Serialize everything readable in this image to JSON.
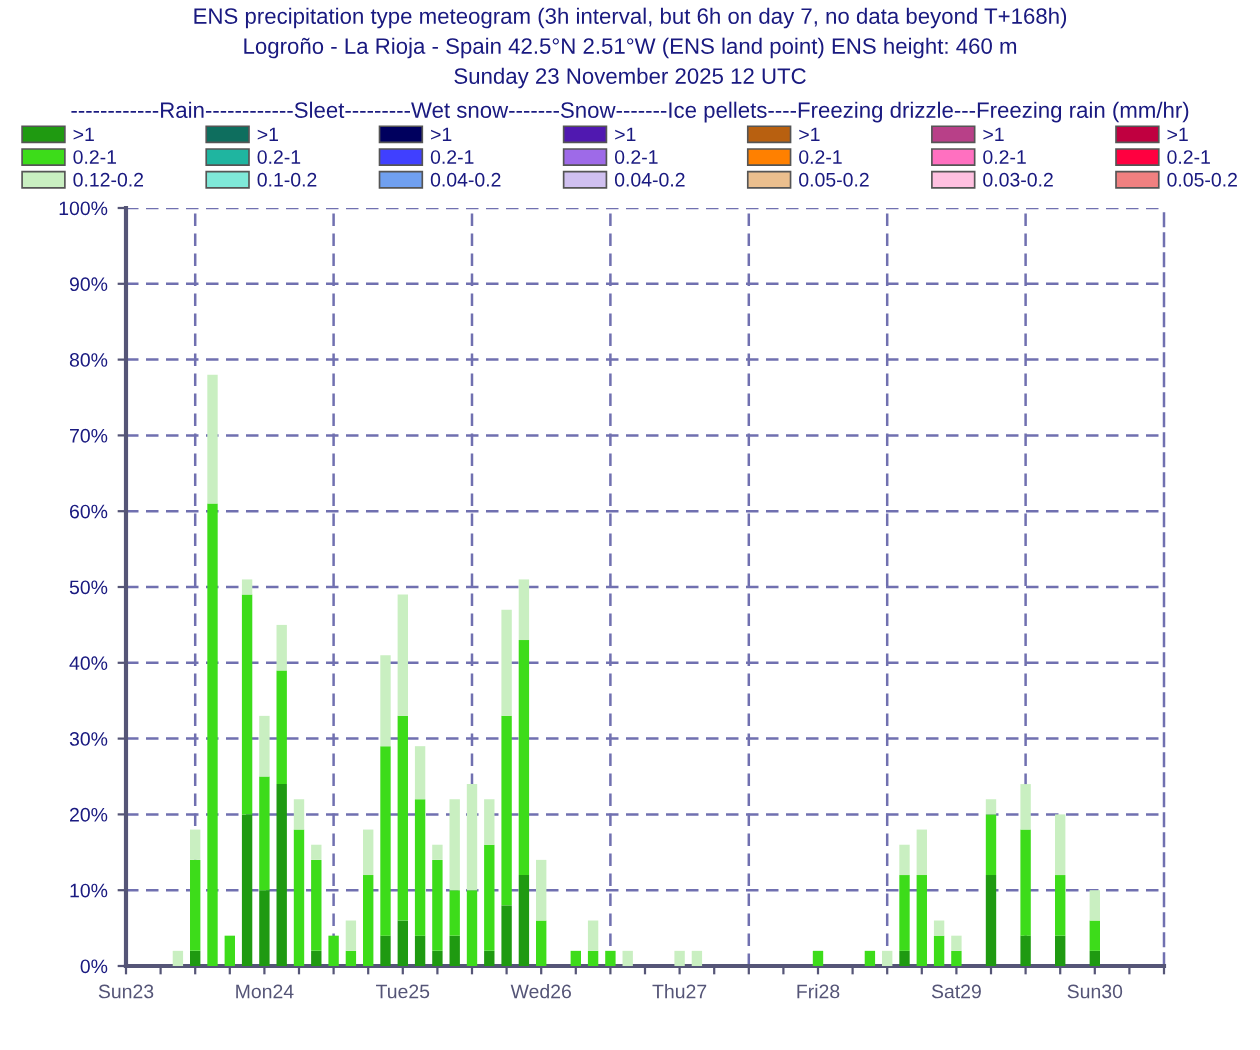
{
  "chart_data": {
    "type": "bar",
    "stacked": true,
    "title": "ENS precipitation type meteogram (3h interval, but 6h on day 7, no data beyond T+168h)",
    "subtitle": "Logroño - La Rioja - Spain 42.5°N 2.51°W (ENS land point) ENS height: 460 m\nSunday 23 November 2025 12 UTC",
    "legend_title": "------------Rain------------Sleet---------Wet snow-------Snow-------Ice pellets----Freezing drizzle---Freezing rain (mm/hr)",
    "legend": "top",
    "grid": "y",
    "x": [
      "2025-11-23T21:00",
      "2025-11-24T00:00",
      "2025-11-24T03:00",
      "2025-11-24T06:00",
      "2025-11-24T09:00",
      "2025-11-24T12:00",
      "2025-11-24T15:00",
      "2025-11-24T18:00",
      "2025-11-24T21:00",
      "2025-11-25T00:00",
      "2025-11-25T03:00",
      "2025-11-25T06:00",
      "2025-11-25T09:00",
      "2025-11-25T12:00",
      "2025-11-25T15:00",
      "2025-11-25T18:00",
      "2025-11-25T21:00",
      "2025-11-26T00:00",
      "2025-11-26T03:00",
      "2025-11-26T06:00",
      "2025-11-26T09:00",
      "2025-11-26T12:00",
      "2025-11-26T18:00",
      "2025-11-26T21:00",
      "2025-11-27T00:00",
      "2025-11-27T03:00",
      "2025-11-27T12:00",
      "2025-11-27T15:00",
      "2025-11-28T12:00",
      "2025-11-28T21:00",
      "2025-11-29T00:00",
      "2025-11-29T03:00",
      "2025-11-29T06:00",
      "2025-11-29T09:00",
      "2025-11-29T12:00",
      "2025-11-29T18:00",
      "2025-11-30T00:00",
      "2025-11-30T06:00",
      "2025-11-30T12:00"
    ],
    "xlim": [
      "2025-11-23T12:00",
      "2025-12-01T00:00"
    ],
    "xticks": [
      {
        "value": "2025-11-23T12:00",
        "label": "Sun23"
      },
      {
        "value": "2025-11-23T18:00",
        "label": null
      },
      {
        "value": "2025-11-24T00:00",
        "label": null
      },
      {
        "value": "2025-11-24T06:00",
        "label": null
      },
      {
        "value": "2025-11-24T12:00",
        "label": "Mon24"
      },
      {
        "value": "2025-11-24T18:00",
        "label": null
      },
      {
        "value": "2025-11-25T00:00",
        "label": null
      },
      {
        "value": "2025-11-25T06:00",
        "label": null
      },
      {
        "value": "2025-11-25T12:00",
        "label": "Tue25"
      },
      {
        "value": "2025-11-25T18:00",
        "label": null
      },
      {
        "value": "2025-11-26T00:00",
        "label": null
      },
      {
        "value": "2025-11-26T06:00",
        "label": null
      },
      {
        "value": "2025-11-26T12:00",
        "label": "Wed26"
      },
      {
        "value": "2025-11-26T18:00",
        "label": null
      },
      {
        "value": "2025-11-27T00:00",
        "label": null
      },
      {
        "value": "2025-11-27T06:00",
        "label": null
      },
      {
        "value": "2025-11-27T12:00",
        "label": "Thu27"
      },
      {
        "value": "2025-11-27T18:00",
        "label": null
      },
      {
        "value": "2025-11-28T00:00",
        "label": null
      },
      {
        "value": "2025-11-28T06:00",
        "label": null
      },
      {
        "value": "2025-11-28T12:00",
        "label": "Fri28"
      },
      {
        "value": "2025-11-28T18:00",
        "label": null
      },
      {
        "value": "2025-11-29T00:00",
        "label": null
      },
      {
        "value": "2025-11-29T06:00",
        "label": null
      },
      {
        "value": "2025-11-29T12:00",
        "label": "Sat29"
      },
      {
        "value": "2025-11-29T18:00",
        "label": null
      },
      {
        "value": "2025-11-30T00:00",
        "label": null
      },
      {
        "value": "2025-11-30T06:00",
        "label": null
      },
      {
        "value": "2025-11-30T12:00",
        "label": "Sun30"
      },
      {
        "value": "2025-11-30T18:00",
        "label": null
      },
      {
        "value": "2025-12-01T00:00",
        "label": null
      }
    ],
    "ylim": [
      0,
      100
    ],
    "yticks": [
      {
        "value": 0,
        "label": "0%"
      },
      {
        "value": 10,
        "label": "10%"
      },
      {
        "value": 20,
        "label": "20%"
      },
      {
        "value": 30,
        "label": "30%"
      },
      {
        "value": 40,
        "label": "40%"
      },
      {
        "value": 50,
        "label": "50%"
      },
      {
        "value": 60,
        "label": "60%"
      },
      {
        "value": 70,
        "label": "70%"
      },
      {
        "value": 80,
        "label": "80%"
      },
      {
        "value": 90,
        "label": "90%"
      },
      {
        "value": 100,
        "label": "100%"
      }
    ],
    "ref_lines": [
      {
        "axis": "x",
        "value": "2025-11-24T00:00",
        "color": "#7070b0",
        "line_style": "dashed"
      },
      {
        "axis": "x",
        "value": "2025-11-25T00:00",
        "color": "#7070b0",
        "line_style": "dashed"
      },
      {
        "axis": "x",
        "value": "2025-11-26T00:00",
        "color": "#7070b0",
        "line_style": "dashed"
      },
      {
        "axis": "x",
        "value": "2025-11-27T00:00",
        "color": "#7070b0",
        "line_style": "dashed"
      },
      {
        "axis": "x",
        "value": "2025-11-28T00:00",
        "color": "#7070b0",
        "line_style": "dashed"
      },
      {
        "axis": "x",
        "value": "2025-11-29T00:00",
        "color": "#7070b0",
        "line_style": "dashed"
      },
      {
        "axis": "x",
        "value": "2025-11-30T00:00",
        "color": "#7070b0",
        "line_style": "dashed"
      }
    ],
    "series": [
      {
        "name": ">1",
        "color": "#1f9a11",
        "values": [
          null,
          2,
          null,
          null,
          20,
          10,
          24,
          null,
          2,
          null,
          null,
          null,
          4,
          6,
          4,
          2,
          4,
          null,
          2,
          8,
          12,
          null,
          null,
          null,
          null,
          null,
          null,
          null,
          null,
          null,
          null,
          2,
          null,
          null,
          null,
          12,
          4,
          4,
          2
        ]
      },
      {
        "name": "0.2-1",
        "color": "#3ddc1a",
        "values": [
          null,
          12,
          61,
          4,
          29,
          15,
          15,
          18,
          12,
          4,
          2,
          12,
          25,
          27,
          18,
          12,
          6,
          10,
          14,
          25,
          31,
          6,
          2,
          2,
          2,
          null,
          null,
          null,
          2,
          2,
          null,
          10,
          12,
          4,
          2,
          8,
          14,
          8,
          4
        ]
      },
      {
        "name": "0.12-0.2",
        "color": "#c9efc1",
        "values": [
          2,
          4,
          17,
          null,
          2,
          8,
          6,
          4,
          2,
          null,
          4,
          6,
          12,
          16,
          7,
          2,
          12,
          14,
          6,
          14,
          8,
          8,
          null,
          4,
          null,
          2,
          2,
          2,
          null,
          null,
          2,
          4,
          6,
          2,
          2,
          2,
          6,
          8,
          4
        ]
      },
      {
        "name": ">1",
        "color": "#0e6e5e",
        "values": [
          null,
          null,
          null,
          null,
          null,
          null,
          null,
          null,
          null,
          null,
          null,
          null,
          null,
          null,
          null,
          null,
          null,
          null,
          null,
          null,
          null,
          null,
          null,
          null,
          null,
          null,
          null,
          null,
          null,
          null,
          null,
          null,
          null,
          null,
          null,
          null,
          null,
          null,
          null
        ]
      },
      {
        "name": "0.2-1",
        "color": "#1fb5a0",
        "values": [
          null,
          null,
          null,
          null,
          null,
          null,
          null,
          null,
          null,
          null,
          null,
          null,
          null,
          null,
          null,
          null,
          null,
          null,
          null,
          null,
          null,
          null,
          null,
          null,
          null,
          null,
          null,
          null,
          null,
          null,
          null,
          null,
          null,
          null,
          null,
          null,
          null,
          null,
          null
        ]
      },
      {
        "name": "0.1-0.2",
        "color": "#7fe8d8",
        "values": [
          null,
          null,
          null,
          null,
          null,
          null,
          null,
          null,
          null,
          null,
          null,
          null,
          null,
          null,
          null,
          null,
          null,
          null,
          null,
          null,
          null,
          null,
          null,
          null,
          null,
          null,
          null,
          null,
          null,
          null,
          null,
          null,
          null,
          null,
          null,
          null,
          null,
          null,
          null
        ]
      },
      {
        "name": ">1",
        "color": "#00005e",
        "values": [
          null,
          null,
          null,
          null,
          null,
          null,
          null,
          null,
          null,
          null,
          null,
          null,
          null,
          null,
          null,
          null,
          null,
          null,
          null,
          null,
          null,
          null,
          null,
          null,
          null,
          null,
          null,
          null,
          null,
          null,
          null,
          null,
          null,
          null,
          null,
          null,
          null,
          null,
          null
        ]
      },
      {
        "name": "0.2-1",
        "color": "#4040ff",
        "values": [
          null,
          null,
          null,
          null,
          null,
          null,
          null,
          null,
          null,
          null,
          null,
          null,
          null,
          null,
          null,
          null,
          null,
          null,
          null,
          null,
          null,
          null,
          null,
          null,
          null,
          null,
          null,
          null,
          null,
          null,
          null,
          null,
          null,
          null,
          null,
          null,
          null,
          null,
          null
        ]
      },
      {
        "name": "0.04-0.2",
        "color": "#70a0f0",
        "values": [
          null,
          null,
          null,
          null,
          null,
          null,
          null,
          null,
          null,
          null,
          null,
          null,
          null,
          null,
          null,
          null,
          null,
          null,
          null,
          null,
          null,
          null,
          null,
          null,
          null,
          null,
          null,
          null,
          null,
          null,
          null,
          null,
          null,
          null,
          null,
          null,
          null,
          null,
          null
        ]
      },
      {
        "name": ">1",
        "color": "#5018b0",
        "values": [
          null,
          null,
          null,
          null,
          null,
          null,
          null,
          null,
          null,
          null,
          null,
          null,
          null,
          null,
          null,
          null,
          null,
          null,
          null,
          null,
          null,
          null,
          null,
          null,
          null,
          null,
          null,
          null,
          null,
          null,
          null,
          null,
          null,
          null,
          null,
          null,
          null,
          null,
          null
        ]
      },
      {
        "name": "0.2-1",
        "color": "#9e6ae8",
        "values": [
          null,
          null,
          null,
          null,
          null,
          null,
          null,
          null,
          null,
          null,
          null,
          null,
          null,
          null,
          null,
          null,
          null,
          null,
          null,
          null,
          null,
          null,
          null,
          null,
          null,
          null,
          null,
          null,
          null,
          null,
          null,
          null,
          null,
          null,
          null,
          null,
          null,
          null,
          null
        ]
      },
      {
        "name": "0.04-0.2",
        "color": "#d0c0f0",
        "values": [
          null,
          null,
          null,
          null,
          null,
          null,
          null,
          null,
          null,
          null,
          null,
          null,
          null,
          null,
          null,
          null,
          null,
          null,
          null,
          null,
          null,
          null,
          null,
          null,
          null,
          null,
          null,
          null,
          null,
          null,
          null,
          null,
          null,
          null,
          null,
          null,
          null,
          null,
          null
        ]
      },
      {
        "name": ">1",
        "color": "#b86010",
        "values": [
          null,
          null,
          null,
          null,
          null,
          null,
          null,
          null,
          null,
          null,
          null,
          null,
          null,
          null,
          null,
          null,
          null,
          null,
          null,
          null,
          null,
          null,
          null,
          null,
          null,
          null,
          null,
          null,
          null,
          null,
          null,
          null,
          null,
          null,
          null,
          null,
          null,
          null,
          null
        ]
      },
      {
        "name": "0.2-1",
        "color": "#ff8000",
        "values": [
          null,
          null,
          null,
          null,
          null,
          null,
          null,
          null,
          null,
          null,
          null,
          null,
          null,
          null,
          null,
          null,
          null,
          null,
          null,
          null,
          null,
          null,
          null,
          null,
          null,
          null,
          null,
          null,
          null,
          null,
          null,
          null,
          null,
          null,
          null,
          null,
          null,
          null,
          null
        ]
      },
      {
        "name": "0.05-0.2",
        "color": "#ebbf8e",
        "values": [
          null,
          null,
          null,
          null,
          null,
          null,
          null,
          null,
          null,
          null,
          null,
          null,
          null,
          null,
          null,
          null,
          null,
          null,
          null,
          null,
          null,
          null,
          null,
          null,
          null,
          null,
          null,
          null,
          null,
          null,
          null,
          null,
          null,
          null,
          null,
          null,
          null,
          null,
          null
        ]
      },
      {
        "name": ">1",
        "color": "#b84088",
        "values": [
          null,
          null,
          null,
          null,
          null,
          null,
          null,
          null,
          null,
          null,
          null,
          null,
          null,
          null,
          null,
          null,
          null,
          null,
          null,
          null,
          null,
          null,
          null,
          null,
          null,
          null,
          null,
          null,
          null,
          null,
          null,
          null,
          null,
          null,
          null,
          null,
          null,
          null,
          null
        ]
      },
      {
        "name": "0.2-1",
        "color": "#ff70c0",
        "values": [
          null,
          null,
          null,
          null,
          null,
          null,
          null,
          null,
          null,
          null,
          null,
          null,
          null,
          null,
          null,
          null,
          null,
          null,
          null,
          null,
          null,
          null,
          null,
          null,
          null,
          null,
          null,
          null,
          null,
          null,
          null,
          null,
          null,
          null,
          null,
          null,
          null,
          null,
          null
        ]
      },
      {
        "name": "0.03-0.2",
        "color": "#ffc0e0",
        "values": [
          null,
          null,
          null,
          null,
          null,
          null,
          null,
          null,
          null,
          null,
          null,
          null,
          null,
          null,
          null,
          null,
          null,
          null,
          null,
          null,
          null,
          null,
          null,
          null,
          null,
          null,
          null,
          null,
          null,
          null,
          null,
          null,
          null,
          null,
          null,
          null,
          null,
          null,
          null
        ]
      },
      {
        "name": ">1",
        "color": "#c00040",
        "values": [
          null,
          null,
          null,
          null,
          null,
          null,
          null,
          null,
          null,
          null,
          null,
          null,
          null,
          null,
          null,
          null,
          null,
          null,
          null,
          null,
          null,
          null,
          null,
          null,
          null,
          null,
          null,
          null,
          null,
          null,
          null,
          null,
          null,
          null,
          null,
          null,
          null,
          null,
          null
        ]
      },
      {
        "name": "0.2-1",
        "color": "#ff0040",
        "values": [
          null,
          null,
          null,
          null,
          null,
          null,
          null,
          null,
          null,
          null,
          null,
          null,
          null,
          null,
          null,
          null,
          null,
          null,
          null,
          null,
          null,
          null,
          null,
          null,
          null,
          null,
          null,
          null,
          null,
          null,
          null,
          null,
          null,
          null,
          null,
          null,
          null,
          null,
          null
        ]
      },
      {
        "name": "0.05-0.2",
        "color": "#f08080",
        "values": [
          null,
          null,
          null,
          null,
          null,
          null,
          null,
          null,
          null,
          null,
          null,
          null,
          null,
          null,
          null,
          null,
          null,
          null,
          null,
          null,
          null,
          null,
          null,
          null,
          null,
          null,
          null,
          null,
          null,
          null,
          null,
          null,
          null,
          null,
          null,
          null,
          null,
          null,
          null
        ]
      }
    ]
  }
}
